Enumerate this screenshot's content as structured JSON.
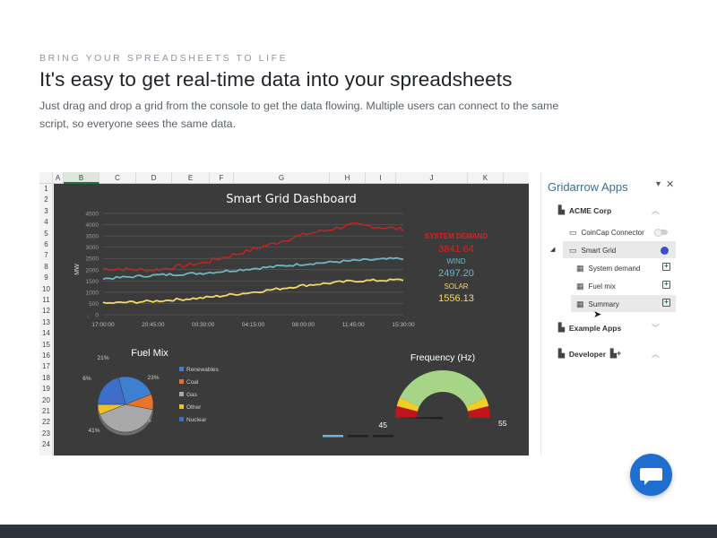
{
  "hero": {
    "eyebrow": "BRING YOUR SPREADSHEETS TO LIFE",
    "title": "It's easy to get real-time data into your spreadsheets",
    "lede": "Just drag and drop a grid from the console to get the data flowing. Multiple users can connect to the same script, so everyone sees the same data."
  },
  "sheet": {
    "columns": [
      "A",
      "B",
      "C",
      "D",
      "E",
      "F",
      "G",
      "H",
      "I",
      "J",
      "K"
    ],
    "selected_column": "B",
    "rows": [
      "1",
      "2",
      "3",
      "4",
      "5",
      "6",
      "7",
      "8",
      "9",
      "10",
      "11",
      "12",
      "13",
      "14",
      "15",
      "16",
      "17",
      "18",
      "19",
      "20",
      "21",
      "22",
      "23",
      "24"
    ]
  },
  "dashboard": {
    "title": "Smart Grid Dashboard",
    "labels": {
      "demand": "SYSTEM DEMAND",
      "demand_value": "3841.64",
      "wind": "WIND",
      "wind_value": "2497.20",
      "solar": "SOLAR",
      "solar_value": "1556.13"
    },
    "colors": {
      "background": "#3b3b3b",
      "demand": "#e11f1f",
      "wind": "#6fb6c4",
      "solar": "#f2d868"
    }
  },
  "chart_data": [
    {
      "type": "line",
      "title": "",
      "ylabel": "MW",
      "ylim": [
        0,
        4500
      ],
      "y_ticks": [
        "0",
        "500",
        "1000",
        "1500",
        "2000",
        "2500",
        "3000",
        "3500",
        "4000",
        "4500"
      ],
      "x_ticks": [
        "17:00:00",
        "20:45:00",
        "00:30:00",
        "04:15:00",
        "08:00:00",
        "11:45:00",
        "15:30:00"
      ],
      "x": [
        "17:00:00",
        "20:45:00",
        "00:30:00",
        "04:15:00",
        "08:00:00",
        "11:45:00",
        "15:30:00"
      ],
      "series": [
        {
          "name": "SYSTEM DEMAND",
          "color": "#e11f1f",
          "values": [
            2050,
            1980,
            2300,
            2900,
            3550,
            4000,
            3800
          ]
        },
        {
          "name": "WIND",
          "color": "#6fb6c4",
          "values": [
            1600,
            1750,
            1850,
            2050,
            2250,
            2400,
            2500
          ]
        },
        {
          "name": "SOLAR",
          "color": "#f2d868",
          "values": [
            500,
            600,
            750,
            1000,
            1300,
            1500,
            1550
          ]
        }
      ],
      "grid": true
    },
    {
      "type": "pie",
      "title": "Fuel Mix",
      "categories": [
        "Renewables",
        "Coal",
        "Gas",
        "Other",
        "Nuclear"
      ],
      "values": [
        23,
        9,
        41,
        6,
        21
      ],
      "slice_labels": [
        "23%",
        "9%",
        "41%",
        "6%",
        "21%"
      ],
      "colors": [
        "#3f7fd2",
        "#e8742a",
        "#a8a8a8",
        "#f2c125",
        "#3e6ec8"
      ],
      "legend": "right"
    },
    {
      "type": "gauge",
      "title": "Frequency (Hz)",
      "min": "45",
      "max": "55",
      "value": 50,
      "band_colors": [
        "#c0151b",
        "#f0cf24",
        "#a7d587"
      ]
    }
  ],
  "panel": {
    "title": "Gridarrow Apps",
    "menu_icon": "caret-down-icon",
    "close_icon": "close-icon",
    "groups": {
      "acme": "ACME Corp",
      "example": "Example Apps",
      "developer": "Developer"
    },
    "apps": {
      "coincap": "CoinCap Connector",
      "smart_grid": "Smart Grid"
    },
    "grids": [
      "System demand",
      "Fuel mix",
      "Summary"
    ],
    "accent": "#3f4fc8"
  }
}
